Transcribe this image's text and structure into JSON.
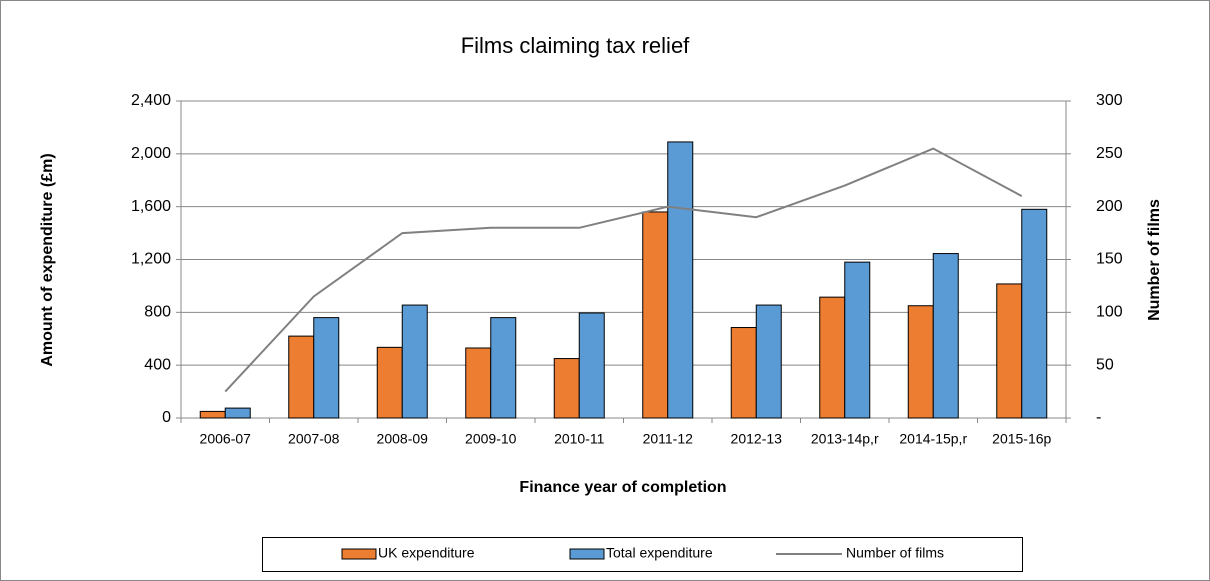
{
  "chart_data": {
    "type": "bar-line",
    "title": "Films claiming tax relief",
    "x_label": "Finance year of completion",
    "y_label": "Amount of expenditure (£m)",
    "y2_label": "Number of films",
    "categories": [
      "2006-07",
      "2007-08",
      "2008-09",
      "2009-10",
      "2010-11",
      "2011-12",
      "2012-13",
      "2013-14p,r",
      "2014-15p,r",
      "2015-16p"
    ],
    "series": [
      {
        "name": "UK expenditure",
        "color": "#ED7D31",
        "type": "bar",
        "values": [
          50,
          620,
          535,
          530,
          450,
          1560,
          685,
          915,
          850,
          1015
        ]
      },
      {
        "name": "Total expenditure",
        "color": "#5B9BD5",
        "type": "bar",
        "values": [
          75,
          760,
          855,
          760,
          795,
          2090,
          855,
          1180,
          1245,
          1580
        ]
      },
      {
        "name": "Number of films",
        "color": "#808080",
        "type": "line",
        "axis": "y2",
        "values": [
          25,
          115,
          175,
          180,
          180,
          200,
          190,
          220,
          255,
          210
        ]
      }
    ],
    "ylim": [
      0,
      2400
    ],
    "yticks": [
      0,
      400,
      800,
      {
        "value": 1200,
        "label": "1,200"
      },
      {
        "value": 1600,
        "label": "1,600"
      },
      {
        "value": 2000,
        "label": "2,000"
      },
      {
        "value": 2400,
        "label": "2,400"
      }
    ],
    "y2lim": [
      0,
      300
    ],
    "y2ticks": [
      {
        "value": 0,
        "label": "-"
      },
      50,
      100,
      150,
      200,
      250,
      300
    ],
    "grid": true
  }
}
